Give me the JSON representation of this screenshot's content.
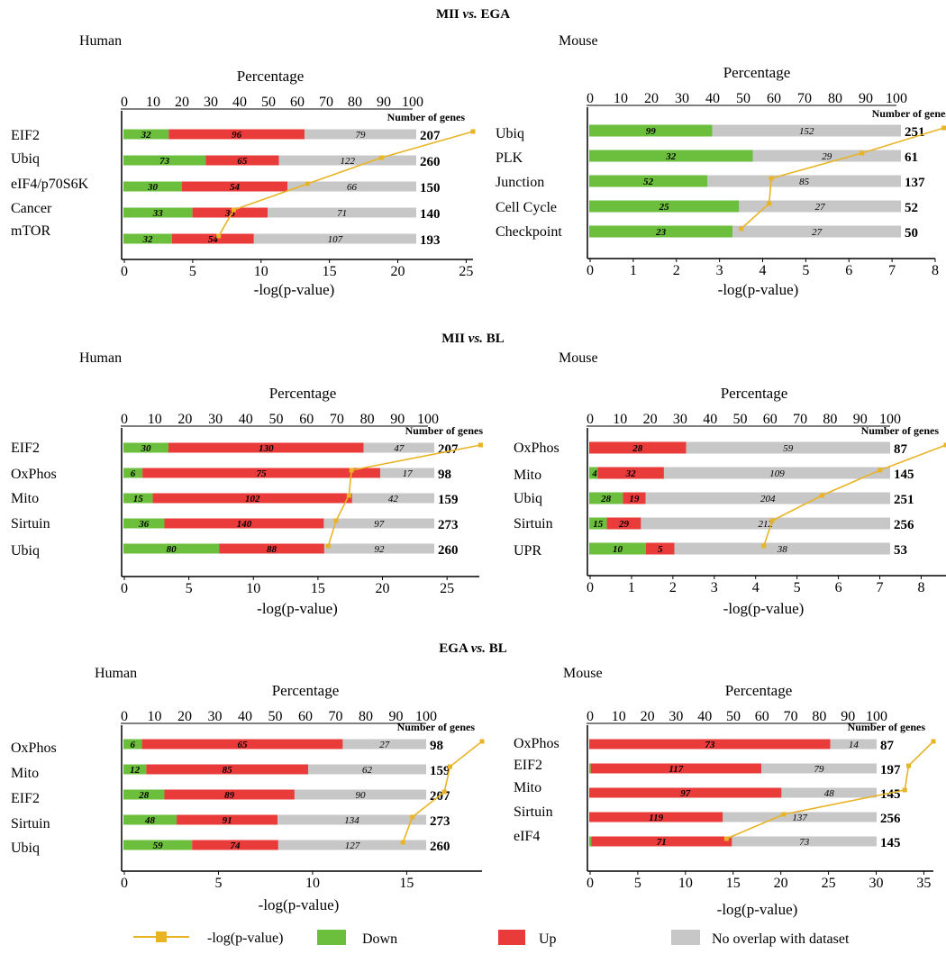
{
  "sections": [
    {
      "title_prefix": "MII ",
      "title_vs": "vs.",
      "title_suffix": " EGA"
    },
    {
      "title_prefix": "MII ",
      "title_vs": "vs.",
      "title_suffix": " BL"
    },
    {
      "title_prefix": "EGA ",
      "title_vs": "vs.",
      "title_suffix": " BL"
    }
  ],
  "legend": {
    "pvalue_label": "-log(p-value)",
    "down_label": "Down",
    "up_label": "Up",
    "nooverlap_label": "No overlap with dataset"
  },
  "colors": {
    "down": "#6bbf3d",
    "up": "#ea3b3b",
    "nooverlap": "#c7c7c7",
    "pvalue_line": "#e8b325",
    "axis": "#000000"
  },
  "chart_data": [
    {
      "type": "bar",
      "stacked": true,
      "orientation": "horizontal",
      "panel_title": "Human",
      "top_axis_label": "Percentage",
      "top_axis_ticks": [
        "0",
        "10",
        "20",
        "30",
        "40",
        "50",
        "60",
        "70",
        "80",
        "90",
        "100"
      ],
      "bottom_axis_label": "-log(p-value)",
      "bottom_axis_ticks": [
        "0",
        "5",
        "10",
        "15",
        "20",
        "25"
      ],
      "bottom_axis_range": [
        0,
        25.5
      ],
      "number_header": "Number of genes",
      "categories": [
        "EIF2",
        "Ubiq",
        "eIF4/p70S6K",
        "Cancer",
        "mTOR"
      ],
      "series": [
        {
          "name": "Down",
          "values": [
            32,
            73,
            30,
            33,
            32
          ]
        },
        {
          "name": "Up",
          "values": [
            96,
            65,
            54,
            36,
            54
          ]
        },
        {
          "name": "No overlap with dataset",
          "values": [
            79,
            122,
            66,
            71,
            107
          ]
        }
      ],
      "totals": [
        "207",
        "260",
        "150",
        "140",
        "193"
      ],
      "pvalues": [
        25.5,
        18.8,
        13.4,
        8.0,
        6.9
      ]
    },
    {
      "type": "bar",
      "stacked": true,
      "orientation": "horizontal",
      "panel_title": "Mouse",
      "top_axis_label": "Percentage",
      "top_axis_ticks": [
        "0",
        "10",
        "20",
        "30",
        "40",
        "50",
        "60",
        "70",
        "80",
        "90",
        "100"
      ],
      "bottom_axis_label": "-log(p-value)",
      "bottom_axis_ticks": [
        "0",
        "1",
        "2",
        "3",
        "4",
        "5",
        "6",
        "7",
        "8"
      ],
      "bottom_axis_range": [
        0,
        8
      ],
      "number_header": "Number of genes",
      "categories": [
        "Ubiq",
        "PLK",
        "Junction",
        "Cell Cycle",
        "Checkpoint"
      ],
      "series": [
        {
          "name": "Down",
          "values": [
            99,
            32,
            52,
            25,
            23
          ]
        },
        {
          "name": "Up",
          "values": [
            0,
            0,
            0,
            0,
            0
          ]
        },
        {
          "name": "No overlap with dataset",
          "values": [
            152,
            29,
            85,
            27,
            27
          ]
        }
      ],
      "totals": [
        "251",
        "61",
        "137",
        "52",
        "50"
      ],
      "pvalues": [
        8.2,
        6.3,
        4.2,
        4.15,
        3.5
      ]
    },
    {
      "type": "bar",
      "stacked": true,
      "orientation": "horizontal",
      "panel_title": "Human",
      "top_axis_label": "Percentage",
      "top_axis_ticks": [
        "0",
        "10",
        "20",
        "30",
        "40",
        "50",
        "60",
        "70",
        "80",
        "90",
        "100"
      ],
      "bottom_axis_label": "-log(p-value)",
      "bottom_axis_ticks": [
        "0",
        "5",
        "10",
        "15",
        "20",
        "25"
      ],
      "bottom_axis_range": [
        0,
        27.5
      ],
      "number_header": "Number of genes",
      "categories": [
        "EIF2",
        "OxPhos",
        "Mito",
        "Sirtuin",
        "Ubiq"
      ],
      "series": [
        {
          "name": "Down",
          "values": [
            30,
            6,
            15,
            36,
            80
          ]
        },
        {
          "name": "Up",
          "values": [
            130,
            75,
            102,
            140,
            88
          ]
        },
        {
          "name": "No overlap with dataset",
          "values": [
            47,
            17,
            42,
            97,
            92
          ]
        }
      ],
      "totals": [
        "207",
        "98",
        "159",
        "273",
        "260"
      ],
      "pvalues": [
        27.6,
        17.6,
        17.4,
        16.4,
        15.8
      ]
    },
    {
      "type": "bar",
      "stacked": true,
      "orientation": "horizontal",
      "panel_title": "Mouse",
      "top_axis_label": "Percentage",
      "top_axis_ticks": [
        "0",
        "10",
        "20",
        "30",
        "40",
        "50",
        "60",
        "70",
        "80",
        "90",
        "100"
      ],
      "bottom_axis_label": "-log(p-value)",
      "bottom_axis_ticks": [
        "0",
        "1",
        "2",
        "3",
        "4",
        "5",
        "6",
        "7",
        "8"
      ],
      "bottom_axis_range": [
        0,
        8.6
      ],
      "number_header": "Number of genes",
      "categories": [
        "OxPhos",
        "Mito",
        "Ubiq",
        "Sirtuin",
        "UPR"
      ],
      "series": [
        {
          "name": "Down",
          "values": [
            0,
            4,
            28,
            15,
            10
          ]
        },
        {
          "name": "Up",
          "values": [
            28,
            32,
            19,
            29,
            5
          ]
        },
        {
          "name": "No overlap with dataset",
          "values": [
            59,
            109,
            204,
            212,
            38
          ]
        }
      ],
      "totals": [
        "87",
        "145",
        "251",
        "256",
        "53"
      ],
      "pvalues": [
        8.6,
        7.0,
        5.6,
        4.4,
        4.2
      ]
    },
    {
      "type": "bar",
      "stacked": true,
      "orientation": "horizontal",
      "panel_title": "Human",
      "top_axis_label": "Percentage",
      "top_axis_ticks": [
        "0",
        "10",
        "20",
        "30",
        "40",
        "50",
        "60",
        "70",
        "80",
        "90",
        "100"
      ],
      "bottom_axis_label": "-log(p-value)",
      "bottom_axis_ticks": [
        "0",
        "5",
        "10",
        "15"
      ],
      "bottom_axis_range": [
        0,
        19
      ],
      "number_header": "Number of genes",
      "categories": [
        "OxPhos",
        "Mito",
        "EIF2",
        "Sirtuin",
        "Ubiq"
      ],
      "series": [
        {
          "name": "Down",
          "values": [
            6,
            12,
            28,
            48,
            59
          ]
        },
        {
          "name": "Up",
          "values": [
            65,
            85,
            89,
            91,
            74
          ]
        },
        {
          "name": "No overlap with dataset",
          "values": [
            27,
            62,
            90,
            134,
            127
          ]
        }
      ],
      "totals": [
        "98",
        "159",
        "207",
        "273",
        "260"
      ],
      "pvalues": [
        19.0,
        17.3,
        17.0,
        15.3,
        14.8
      ]
    },
    {
      "type": "bar",
      "stacked": true,
      "orientation": "horizontal",
      "panel_title": "Mouse",
      "top_axis_label": "Percentage",
      "top_axis_ticks": [
        "0",
        "10",
        "20",
        "30",
        "40",
        "50",
        "60",
        "70",
        "80",
        "90",
        "100"
      ],
      "bottom_axis_label": "-log(p-value)",
      "bottom_axis_ticks": [
        "0",
        "5",
        "10",
        "15",
        "20",
        "25",
        "30",
        "35"
      ],
      "bottom_axis_range": [
        0,
        36
      ],
      "number_header": "Number of genes",
      "categories": [
        "OxPhos",
        "EIF2",
        "Mito",
        "Sirtuin",
        "eIF4"
      ],
      "series": [
        {
          "name": "Down",
          "values": [
            0,
            1,
            0,
            0,
            1
          ]
        },
        {
          "name": "Up",
          "values": [
            73,
            117,
            97,
            119,
            71
          ]
        },
        {
          "name": "No overlap with dataset",
          "values": [
            14,
            79,
            48,
            137,
            73
          ]
        }
      ],
      "totals": [
        "87",
        "197",
        "145",
        "256",
        "145"
      ],
      "pvalues": [
        36.0,
        33.4,
        33.0,
        20.3,
        14.3
      ]
    }
  ]
}
